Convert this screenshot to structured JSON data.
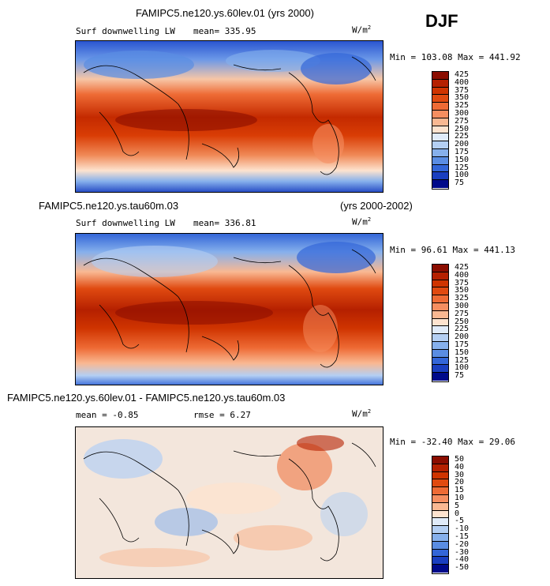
{
  "header": {
    "season": "DJF"
  },
  "panels": [
    {
      "title": "FAMIPC5.ne120.ys.60lev.01 (yrs 2000)",
      "variable": "Surf downwelling LW",
      "mean_label": "mean=",
      "mean_value": "335.95",
      "units": "W/m",
      "units_exp": "2",
      "minmax": "Min = 103.08 Max = 441.92",
      "colorbar_labels": [
        "425",
        "400",
        "375",
        "350",
        "325",
        "300",
        "275",
        "250",
        "225",
        "200",
        "175",
        "150",
        "125",
        "100",
        "75"
      ]
    },
    {
      "title": "FAMIPC5.ne120.ys.tau60m.03",
      "years": "(yrs 2000-2002)",
      "variable": "Surf downwelling LW",
      "mean_label": "mean=",
      "mean_value": "336.81",
      "units": "W/m",
      "units_exp": "2",
      "minmax": "Min =  96.61 Max = 441.13",
      "colorbar_labels": [
        "425",
        "400",
        "375",
        "350",
        "325",
        "300",
        "275",
        "250",
        "225",
        "200",
        "175",
        "150",
        "125",
        "100",
        "75"
      ]
    },
    {
      "title": "FAMIPC5.ne120.ys.60lev.01 - FAMIPC5.ne120.ys.tau60m.03",
      "mean_label": "mean =",
      "mean_value": "-0.85",
      "rmse_label": "rmse =",
      "rmse_value": "6.27",
      "units": "W/m",
      "units_exp": "2",
      "minmax": "Min = -32.40 Max =  29.06",
      "colorbar_labels": [
        "50",
        "40",
        "30",
        "20",
        "15",
        "10",
        "5",
        "0",
        "-5",
        "-10",
        "-15",
        "-20",
        "-30",
        "-40",
        "-50"
      ]
    }
  ],
  "colors": {
    "abs_scale": [
      "#8b0d00",
      "#b52000",
      "#cf3400",
      "#e04a10",
      "#ee6b35",
      "#f58e60",
      "#f9b892",
      "#fde3cf",
      "#e0ebf9",
      "#b4cff3",
      "#86b0ec",
      "#5a8de3",
      "#3366d8",
      "#1a3fc0",
      "#000a8a"
    ],
    "diff_scale": [
      "#8b0d00",
      "#b52000",
      "#cf3400",
      "#e04a10",
      "#ee6b35",
      "#f58e60",
      "#f9b892",
      "#fde3cf",
      "#e0ebf9",
      "#b4cff3",
      "#86b0ec",
      "#5a8de3",
      "#3366d8",
      "#1a3fc0",
      "#000a8a"
    ]
  }
}
